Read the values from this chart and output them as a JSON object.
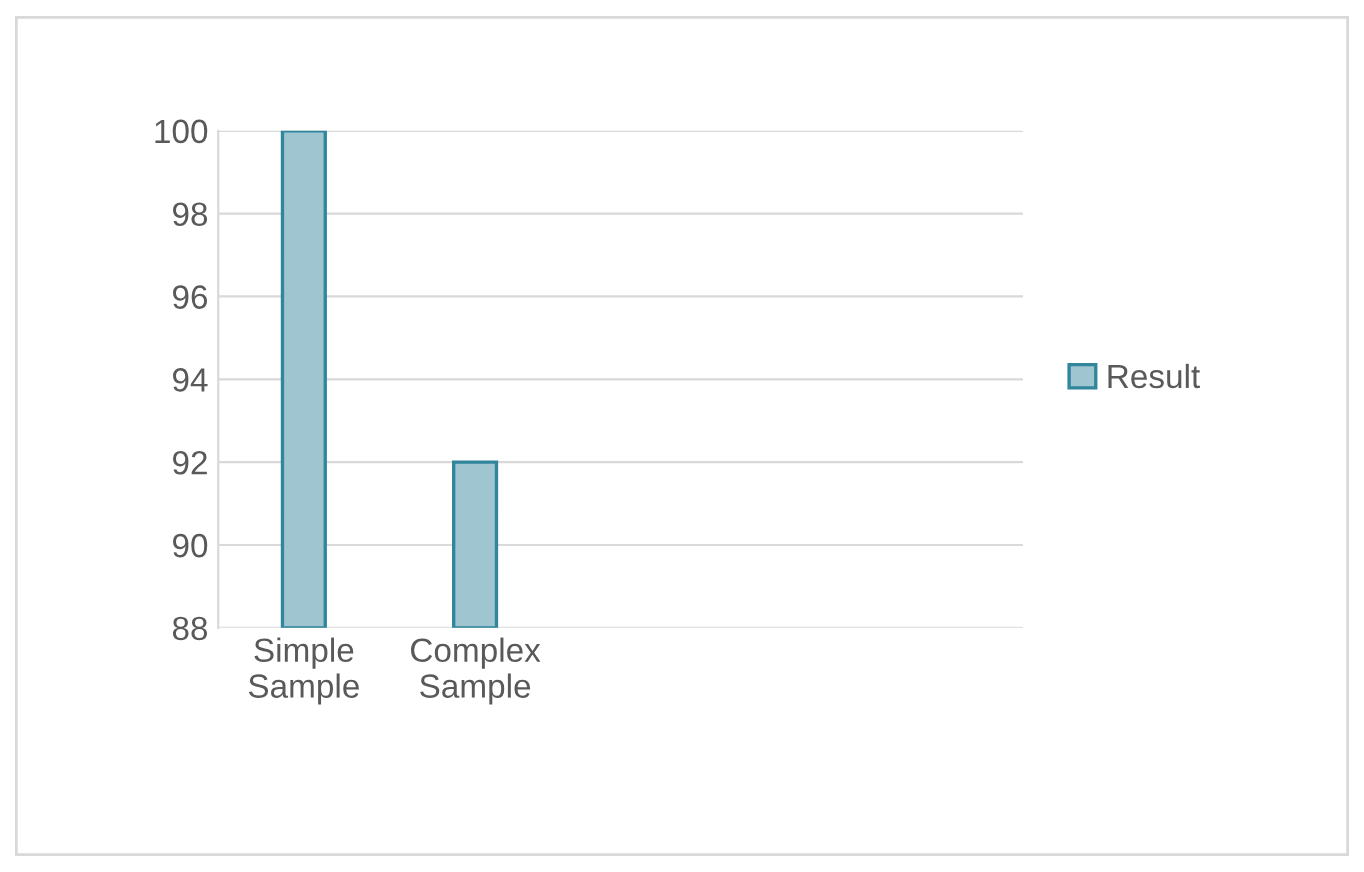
{
  "chart_data": {
    "type": "bar",
    "categories": [
      "Simple\nSample",
      "Complex\nSample"
    ],
    "series": [
      {
        "name": "Result",
        "color": "#9fc5d1",
        "values": [
          100,
          92
        ]
      }
    ],
    "ylim": [
      88,
      100
    ],
    "yticks": [
      88,
      90,
      92,
      94,
      96,
      98,
      100
    ],
    "grid": "y",
    "legend": "right"
  }
}
